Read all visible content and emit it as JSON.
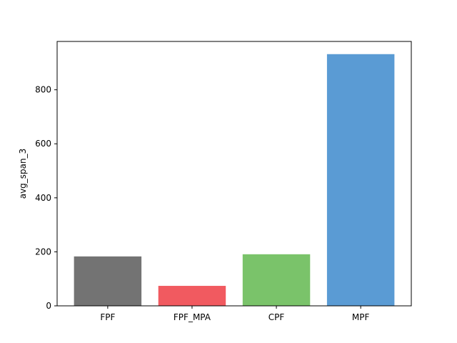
{
  "chart_data": {
    "type": "bar",
    "title": "",
    "xlabel": "",
    "ylabel": "avg_span_3",
    "categories": [
      "FPF",
      "FPF_MPA",
      "CPF",
      "MPF"
    ],
    "values": [
      183,
      74,
      191,
      932
    ],
    "colors": [
      "#737373",
      "#f15a60",
      "#7ac36a",
      "#5a9bd4"
    ],
    "ylim": [
      0,
      979
    ],
    "yticks": [
      0,
      200,
      400,
      600,
      800
    ],
    "grid": false,
    "legend": "none"
  }
}
